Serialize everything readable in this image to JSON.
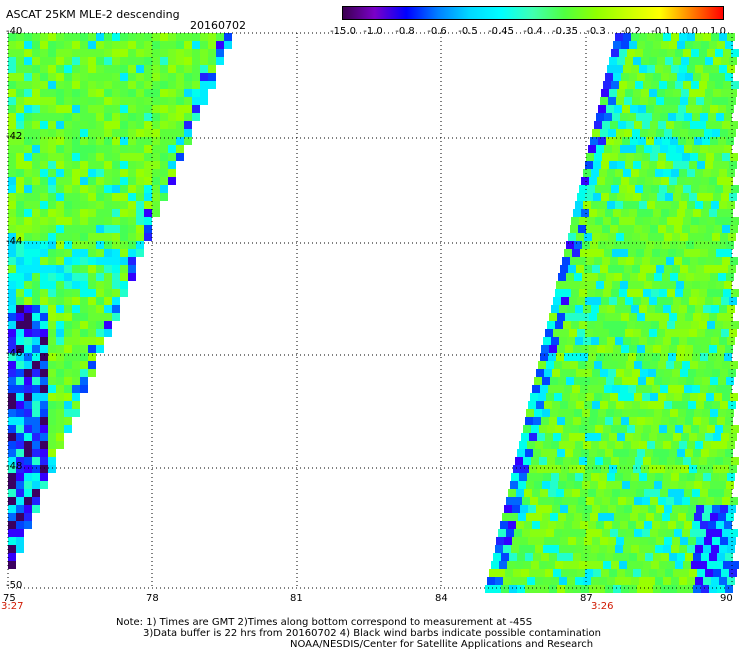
{
  "header": {
    "title": "ASCAT 25KM MLE-2 descending",
    "date": "20160702"
  },
  "colorbar": {
    "labels": [
      "-15.0",
      "-1.0",
      "-0.8",
      "-0.6",
      "-0.5",
      "-0.45",
      "-0.4",
      "-0.35",
      "-0.3",
      "-0.2",
      "-0.1",
      "0.0",
      "1.0"
    ],
    "colors": [
      "#3b0050",
      "#7a00c8",
      "#0000ff",
      "#0080ff",
      "#00d8ff",
      "#00ffff",
      "#40ffb0",
      "#50ff40",
      "#90ff00",
      "#c8ff00",
      "#ffff00",
      "#ff8000",
      "#ff0000"
    ]
  },
  "axes": {
    "y_labels": [
      "-40",
      "-42",
      "-44",
      "-46",
      "-48",
      "-50"
    ],
    "x_labels": [
      "75",
      "78",
      "81",
      "84",
      "87",
      "90"
    ]
  },
  "times": {
    "left": "3:27",
    "right": "3:26"
  },
  "notes": {
    "line1": "Note: 1) Times are GMT 2)Times along bottom correspond to measurement at -45S",
    "line2": "3)Data buffer is 22 hrs from 20160702 4) Black wind barbs indicate possible contamination",
    "line3": "NOAA/NESDIS/Center for Satellite Applications and Research"
  }
}
